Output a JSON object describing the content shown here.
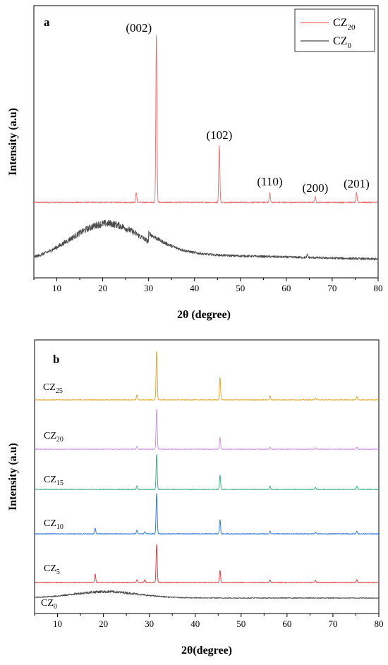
{
  "chart_data": [
    {
      "type": "line",
      "panel_label": "a",
      "xlabel": "2θ (degree)",
      "ylabel": "Intensity (a.u)",
      "xlim": [
        5,
        80
      ],
      "xticks": [
        10,
        20,
        30,
        40,
        50,
        60,
        70,
        80
      ],
      "y_ticks_shown": false,
      "legend": {
        "placement": "top-right",
        "entries": [
          {
            "base": "CZ",
            "sub": "20",
            "color": "#f06a6a"
          },
          {
            "base": "CZ",
            "sub": "0",
            "color": "#4a4a4a"
          }
        ]
      },
      "peak_labels": [
        {
          "text": "(002)",
          "x": 31.7
        },
        {
          "text": "(102)",
          "x": 45.4
        },
        {
          "text": "(110)",
          "x": 56.4
        },
        {
          "text": "(200)",
          "x": 66.3
        },
        {
          "text": "(201)",
          "x": 75.3
        }
      ],
      "series": [
        {
          "name": "CZ20",
          "color": "#f06a6a",
          "baseline": 6,
          "hump": null,
          "peaks": [
            {
              "x": 27.3,
              "h": 14
            },
            {
              "x": 31.7,
              "h": 240
            },
            {
              "x": 45.4,
              "h": 80
            },
            {
              "x": 56.4,
              "h": 14
            },
            {
              "x": 66.3,
              "h": 8
            },
            {
              "x": 75.3,
              "h": 14
            }
          ]
        },
        {
          "name": "CZ0",
          "color": "#4a4a4a",
          "baseline": 100,
          "hump": {
            "center": 21,
            "width": 8,
            "height": 55
          },
          "peaks": [
            {
              "x": 64.6,
              "h": 4
            }
          ]
        }
      ]
    },
    {
      "type": "line",
      "panel_label": "b",
      "xlabel": "2θ(degree)",
      "ylabel": "Intensity (a.u)",
      "xlim": [
        5,
        80
      ],
      "xticks": [
        10,
        20,
        30,
        40,
        50,
        60,
        70,
        80
      ],
      "y_ticks_shown": false,
      "series": [
        {
          "name": "CZ25",
          "base": "CZ",
          "sub": "25",
          "color": "#e0a020",
          "baseline": 70,
          "hump": null,
          "peaks": [
            {
              "x": 27.3,
              "h": 7
            },
            {
              "x": 31.6,
              "h": 70
            },
            {
              "x": 45.4,
              "h": 32
            },
            {
              "x": 56.3,
              "h": 6
            },
            {
              "x": 66.2,
              "h": 3
            },
            {
              "x": 75.2,
              "h": 5
            }
          ]
        },
        {
          "name": "CZ20",
          "base": "CZ",
          "sub": "20",
          "color": "#c88ae6",
          "baseline": 55,
          "hump": null,
          "peaks": [
            {
              "x": 27.3,
              "h": 4
            },
            {
              "x": 31.6,
              "h": 58
            },
            {
              "x": 45.4,
              "h": 17
            },
            {
              "x": 56.3,
              "h": 3
            },
            {
              "x": 66.2,
              "h": 2
            },
            {
              "x": 75.2,
              "h": 3
            }
          ]
        },
        {
          "name": "CZ15",
          "base": "CZ",
          "sub": "15",
          "color": "#2aaa7a",
          "baseline": 40,
          "hump": null,
          "peaks": [
            {
              "x": 27.3,
              "h": 5
            },
            {
              "x": 31.6,
              "h": 50
            },
            {
              "x": 45.4,
              "h": 20
            },
            {
              "x": 56.3,
              "h": 5
            },
            {
              "x": 66.2,
              "h": 3
            },
            {
              "x": 75.2,
              "h": 5
            }
          ]
        },
        {
          "name": "CZ10",
          "base": "CZ",
          "sub": "10",
          "color": "#2070e0",
          "baseline": 28,
          "hump": null,
          "peaks": [
            {
              "x": 18.2,
              "h": 8
            },
            {
              "x": 27.3,
              "h": 5
            },
            {
              "x": 29.0,
              "h": 3
            },
            {
              "x": 31.6,
              "h": 58
            },
            {
              "x": 45.4,
              "h": 20
            },
            {
              "x": 56.3,
              "h": 4
            },
            {
              "x": 66.2,
              "h": 2
            },
            {
              "x": 75.2,
              "h": 4
            }
          ]
        },
        {
          "name": "CZ5",
          "base": "CZ",
          "sub": "5",
          "color": "#e83030",
          "baseline": 14,
          "hump": null,
          "peaks": [
            {
              "x": 18.2,
              "h": 12
            },
            {
              "x": 27.3,
              "h": 4
            },
            {
              "x": 29.0,
              "h": 4
            },
            {
              "x": 31.6,
              "h": 55
            },
            {
              "x": 45.4,
              "h": 17
            },
            {
              "x": 56.3,
              "h": 4
            },
            {
              "x": 66.2,
              "h": 3
            },
            {
              "x": 75.2,
              "h": 4
            }
          ]
        },
        {
          "name": "CZ0",
          "base": "CZ",
          "sub": "0",
          "color": "#4a4a4a",
          "baseline": 5,
          "hump": {
            "center": 20.5,
            "width": 7,
            "height": 9
          },
          "peaks": []
        }
      ]
    }
  ]
}
